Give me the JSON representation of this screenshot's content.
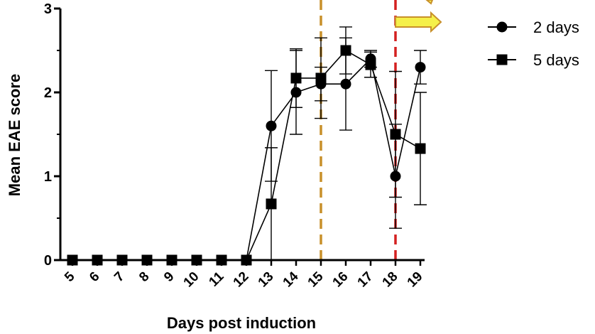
{
  "chart_data": {
    "type": "line",
    "xlabel": "Days post induction",
    "ylabel": "Mean EAE score",
    "categories": [
      "5",
      "6",
      "7",
      "8",
      "9",
      "10",
      "11",
      "12",
      "13",
      "14",
      "15",
      "16",
      "17",
      "18",
      "19"
    ],
    "ylim": [
      0,
      3
    ],
    "yticks": [
      "0",
      "1",
      "2",
      "3"
    ],
    "grid": false,
    "legend_position": "top-right",
    "series": [
      {
        "name": "2 days",
        "marker": "circle",
        "values": [
          0,
          0,
          0,
          0,
          0,
          0,
          0,
          0,
          1.6,
          2.0,
          2.1,
          2.1,
          2.4,
          1.0,
          2.3
        ],
        "error": [
          0,
          0,
          0,
          0,
          0,
          0,
          0,
          0,
          0.66,
          0.5,
          0.2,
          0.55,
          0.1,
          0.62,
          0.2
        ]
      },
      {
        "name": "5 days",
        "marker": "square",
        "values": [
          0,
          0,
          0,
          0,
          0,
          0,
          0,
          0,
          0.67,
          2.17,
          2.17,
          2.5,
          2.33,
          1.5,
          1.33
        ],
        "error": [
          0,
          0,
          0,
          0,
          0,
          0,
          0,
          0,
          0.67,
          0.35,
          0.48,
          0.28,
          0.15,
          0.75,
          0.67
        ]
      }
    ],
    "annotations": [
      {
        "kind": "vertical-dashed-line",
        "x": "15",
        "color": "#c8902a"
      },
      {
        "kind": "vertical-dashed-line",
        "x": "18",
        "color": "#d42020"
      },
      {
        "kind": "arrow",
        "x": "18",
        "color": "#f5f04a",
        "stroke": "#c8902a"
      }
    ]
  }
}
